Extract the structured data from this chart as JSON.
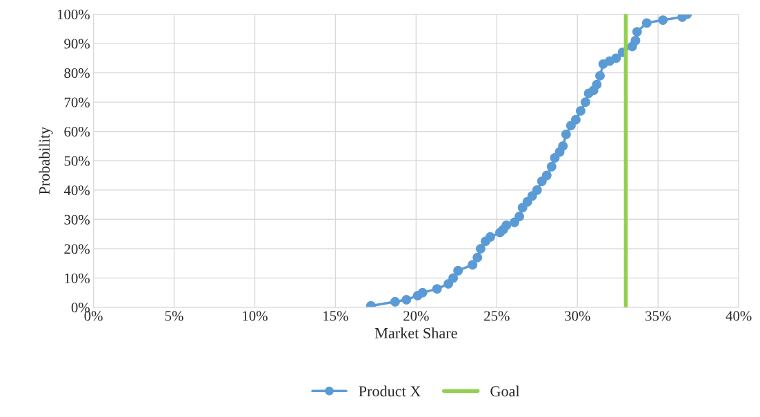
{
  "chart_data": {
    "type": "line",
    "xlabel": "Market Share",
    "ylabel": "Probability",
    "series": [
      {
        "name": "Product X",
        "color": "#5b9bd5",
        "marker": "circle",
        "x": [
          17.2,
          18.7,
          19.4,
          20.1,
          20.4,
          21.3,
          22.0,
          22.3,
          22.6,
          23.5,
          23.8,
          24.0,
          24.3,
          24.6,
          25.2,
          25.4,
          25.6,
          26.1,
          26.4,
          26.6,
          26.9,
          27.2,
          27.5,
          27.8,
          28.1,
          28.4,
          28.6,
          28.9,
          29.1,
          29.3,
          29.6,
          29.9,
          30.2,
          30.5,
          30.7,
          31.0,
          31.2,
          31.4,
          31.6,
          32.0,
          32.4,
          32.8,
          33.4,
          33.6,
          33.7,
          34.3,
          35.3,
          36.5,
          36.8
        ],
        "values": [
          0.5,
          1.9,
          2.6,
          4.0,
          5.0,
          6.3,
          8.0,
          10.0,
          12.5,
          14.5,
          17,
          20,
          22.5,
          24,
          25.5,
          26.5,
          28,
          29,
          31,
          34,
          36,
          38,
          40,
          43,
          45,
          48,
          51,
          53,
          55,
          59,
          62,
          64,
          67,
          70,
          73,
          74,
          76,
          79,
          83,
          84,
          85,
          87,
          89,
          91,
          94,
          97,
          98,
          99,
          100
        ]
      },
      {
        "name": "Goal",
        "color": "#92d050",
        "marker": "none",
        "x": [
          33,
          33
        ],
        "values": [
          0,
          100
        ]
      }
    ],
    "xlim": [
      0,
      40
    ],
    "ylim": [
      0,
      100
    ],
    "xticks": [
      {
        "value": 0,
        "label": "0%"
      },
      {
        "value": 5,
        "label": "5%"
      },
      {
        "value": 10,
        "label": "10%"
      },
      {
        "value": 15,
        "label": "15%"
      },
      {
        "value": 20,
        "label": "20%"
      },
      {
        "value": 25,
        "label": "25%"
      },
      {
        "value": 30,
        "label": "30%"
      },
      {
        "value": 35,
        "label": "35%"
      },
      {
        "value": 40,
        "label": "40%"
      }
    ],
    "yticks": [
      {
        "value": 0,
        "label": "0%"
      },
      {
        "value": 10,
        "label": "10%"
      },
      {
        "value": 20,
        "label": "20%"
      },
      {
        "value": 30,
        "label": "30%"
      },
      {
        "value": 40,
        "label": "40%"
      },
      {
        "value": 50,
        "label": "50%"
      },
      {
        "value": 60,
        "label": "60%"
      },
      {
        "value": 70,
        "label": "70%"
      },
      {
        "value": 80,
        "label": "80%"
      },
      {
        "value": 90,
        "label": "90%"
      },
      {
        "value": 100,
        "label": "100%"
      }
    ],
    "grid": true,
    "legend": "bottom"
  }
}
